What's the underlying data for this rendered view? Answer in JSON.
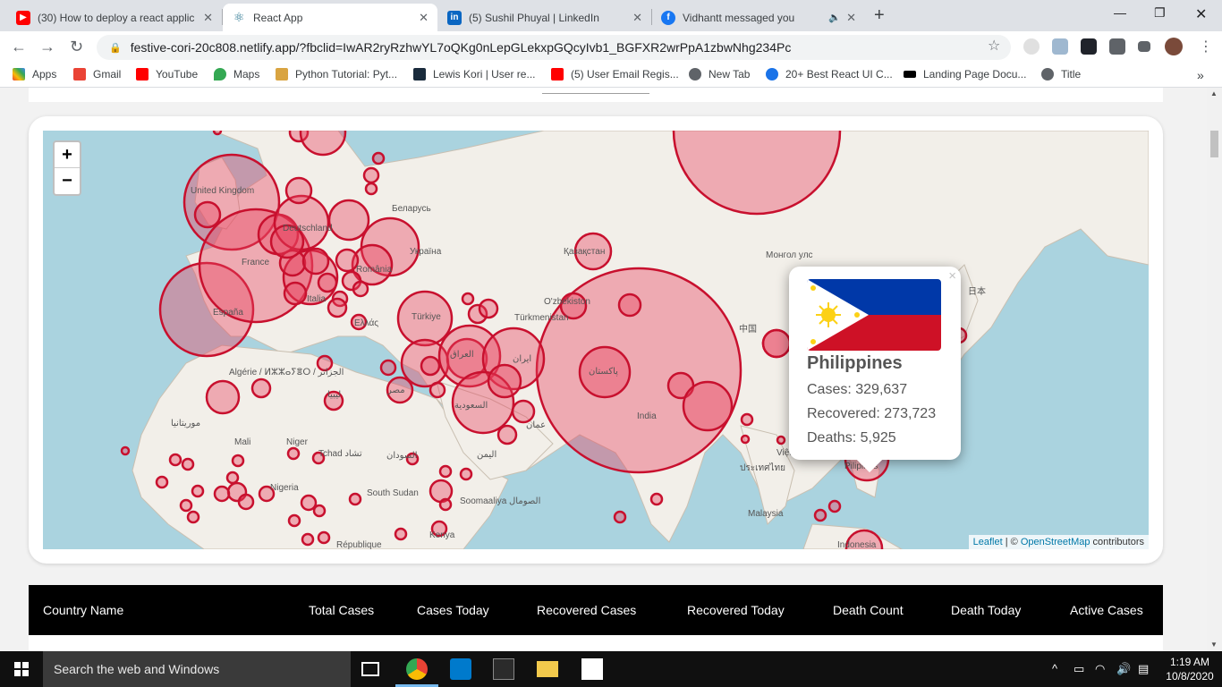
{
  "browser": {
    "tabs": [
      {
        "title": "(30) How to deploy a react applic",
        "icon": "youtube-icon",
        "active": false
      },
      {
        "title": "React App",
        "icon": "react-icon",
        "active": true
      },
      {
        "title": "(5) Sushil Phuyal | LinkedIn",
        "icon": "linkedin-icon",
        "active": false
      },
      {
        "title": "Vidhantt messaged you",
        "icon": "facebook-icon",
        "active": false
      }
    ],
    "url": "festive-cori-20c808.netlify.app/?fbclid=IwAR2ryRzhwYL7oQKg0nLepGLekxpGQcyIvb1_BGFXR2wrPpA1zbwNhg234Pc",
    "bookmarks": [
      {
        "label": "Apps",
        "icon": "apps-grid-icon"
      },
      {
        "label": "Gmail",
        "icon": "gmail-icon"
      },
      {
        "label": "YouTube",
        "icon": "youtube-icon"
      },
      {
        "label": "Maps",
        "icon": "maps-pin-icon"
      },
      {
        "label": "Python Tutorial: Pyt...",
        "icon": "python-icon"
      },
      {
        "label": "Lewis Kori | User re...",
        "icon": "bookmark-dark-icon"
      },
      {
        "label": "(5) User Email Regis...",
        "icon": "youtube-icon"
      },
      {
        "label": "New Tab",
        "icon": "globe-icon"
      },
      {
        "label": "20+ Best React UI C...",
        "icon": "gear-icon"
      },
      {
        "label": "Landing Page Docu...",
        "icon": "bowtie-icon"
      },
      {
        "label": "Title",
        "icon": "globe-icon"
      }
    ]
  },
  "map": {
    "zoom_in": "+",
    "zoom_out": "−",
    "attribution_leaflet": "Leaflet",
    "attribution_sep": " | © ",
    "attribution_osm": "OpenStreetMap",
    "attribution_tail": " contributors",
    "labels": [
      {
        "text": "United Kingdom",
        "id": "uk"
      },
      {
        "text": "Deutschland",
        "id": "de"
      },
      {
        "text": "France",
        "id": "fr"
      },
      {
        "text": "España",
        "id": "es"
      },
      {
        "text": "Italia",
        "id": "it"
      },
      {
        "text": "Беларусь",
        "id": "by"
      },
      {
        "text": "Україна",
        "id": "ua"
      },
      {
        "text": "România",
        "id": "ro"
      },
      {
        "text": "Ελλάς",
        "id": "gr"
      },
      {
        "text": "Türkiye",
        "id": "tr"
      },
      {
        "text": "Қазақстан",
        "id": "kz"
      },
      {
        "text": "O'zbekiston",
        "id": "uz"
      },
      {
        "text": "Türkmenistan",
        "id": "tm"
      },
      {
        "text": "ایران",
        "id": "ir"
      },
      {
        "text": "العراق",
        "id": "iq"
      },
      {
        "text": "پاکستان",
        "id": "pk"
      },
      {
        "text": "India",
        "id": "in"
      },
      {
        "text": "السعودية",
        "id": "sa"
      },
      {
        "text": "مصر",
        "id": "eg"
      },
      {
        "text": "ليبيا",
        "id": "ly"
      },
      {
        "text": "Algérie / ⵍⵣⵣⴰⵢⴻⵔ / الجزائر",
        "id": "dz"
      },
      {
        "text": "Mali",
        "id": "ml"
      },
      {
        "text": "Niger",
        "id": "ne"
      },
      {
        "text": "Tchad تشاد",
        "id": "td"
      },
      {
        "text": "السودان",
        "id": "sd"
      },
      {
        "text": "South Sudan",
        "id": "ss"
      },
      {
        "text": "Nigeria",
        "id": "ng"
      },
      {
        "text": "Soomaaliya الصومال",
        "id": "so"
      },
      {
        "text": "Kenya",
        "id": "ke"
      },
      {
        "text": "République",
        "id": "cd"
      },
      {
        "text": "موريتانيا",
        "id": "mr"
      },
      {
        "text": "Монгол улс",
        "id": "mn"
      },
      {
        "text": "中国",
        "id": "cn"
      },
      {
        "text": "日本",
        "id": "jp"
      },
      {
        "text": "Malaysia",
        "id": "my"
      },
      {
        "text": "Pilipinas",
        "id": "ph"
      },
      {
        "text": "Indonesia",
        "id": "id"
      },
      {
        "text": "Việt Nam",
        "id": "vn"
      },
      {
        "text": "ประเทศไทย",
        "id": "th"
      },
      {
        "text": "عمان",
        "id": "om"
      },
      {
        "text": "اليمن",
        "id": "ye"
      }
    ]
  },
  "popup": {
    "country": "Philippines",
    "cases_label": "Cases: ",
    "cases": "329,637",
    "recovered_label": "Recovered: ",
    "recovered": "273,723",
    "deaths_label": "Deaths: ",
    "deaths": "5,925",
    "close": "×"
  },
  "table": {
    "headers": [
      "Country Name",
      "Total Cases",
      "Cases Today",
      "Recovered Cases",
      "Recovered Today",
      "Death Count",
      "Death Today",
      "Active Cases"
    ]
  },
  "taskbar": {
    "search_placeholder": "Search the web and Windows",
    "time": "1:19 AM",
    "date": "10/8/2020"
  },
  "colors": {
    "circle_fill": "#e8445f",
    "circle_stroke": "#c8102e",
    "ocean": "#aad3df",
    "land": "#f2efe9"
  }
}
